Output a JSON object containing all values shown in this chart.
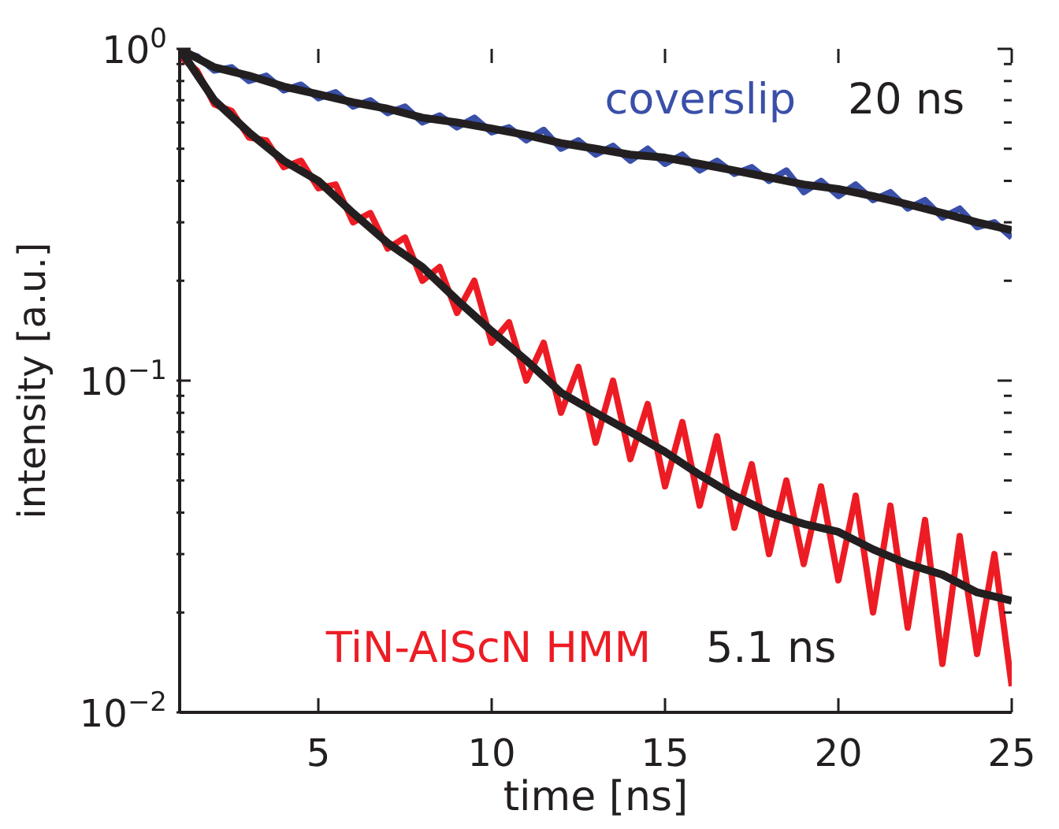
{
  "chart_data": {
    "type": "line",
    "xlabel": "time [ns]",
    "ylabel": "intensity [a.u.]",
    "log": "y",
    "xlim": [
      1,
      25
    ],
    "xticks": [
      5,
      10,
      15,
      20,
      25
    ],
    "ylim": [
      0.01,
      1
    ],
    "yticks": [
      {
        "value": 0.01,
        "label": "10$^{−2}$"
      },
      {
        "value": 0.02,
        "label": null
      },
      {
        "value": 0.03,
        "label": null
      },
      {
        "value": 0.04,
        "label": null
      },
      {
        "value": 0.05,
        "label": null
      },
      {
        "value": 0.06,
        "label": null
      },
      {
        "value": 0.07,
        "label": null
      },
      {
        "value": 0.08,
        "label": null
      },
      {
        "value": 0.09,
        "label": null
      },
      {
        "value": 0.1,
        "label": "10$^{−1}$"
      },
      {
        "value": 0.2,
        "label": null
      },
      {
        "value": 0.3,
        "label": null
      },
      {
        "value": 0.4,
        "label": null
      },
      {
        "value": 0.5,
        "label": null
      },
      {
        "value": 0.6,
        "label": null
      },
      {
        "value": 0.7,
        "label": null
      },
      {
        "value": 0.8,
        "label": null
      },
      {
        "value": 0.9,
        "label": null
      },
      {
        "value": 1,
        "label": "10$^{0}$"
      }
    ],
    "annotations": [
      "20 ns",
      "5.1 ns"
    ],
    "series": [
      {
        "name": "coverslip",
        "color": "#3a4fa8",
        "x": [
          1,
          1.5,
          2,
          2.5,
          3,
          3.5,
          4,
          4.5,
          5,
          5.5,
          6,
          6.5,
          7,
          7.5,
          8,
          8.5,
          9,
          9.5,
          10,
          10.5,
          11,
          11.5,
          12,
          12.5,
          13,
          13.5,
          14,
          14.5,
          15,
          15.5,
          16,
          16.5,
          17,
          17.5,
          18,
          18.5,
          19,
          19.5,
          20,
          20.5,
          21,
          21.5,
          22,
          22.5,
          23,
          23.5,
          24,
          24.5,
          25
        ],
        "values": [
          0.98,
          0.95,
          0.86,
          0.88,
          0.8,
          0.83,
          0.75,
          0.78,
          0.71,
          0.74,
          0.67,
          0.7,
          0.64,
          0.67,
          0.6,
          0.63,
          0.58,
          0.62,
          0.56,
          0.58,
          0.53,
          0.57,
          0.5,
          0.53,
          0.48,
          0.51,
          0.46,
          0.5,
          0.45,
          0.48,
          0.43,
          0.46,
          0.42,
          0.44,
          0.4,
          0.43,
          0.37,
          0.4,
          0.36,
          0.39,
          0.35,
          0.37,
          0.33,
          0.35,
          0.31,
          0.33,
          0.29,
          0.3,
          0.27
        ]
      },
      {
        "color": "#231f20",
        "x": [
          1,
          2,
          3,
          4,
          5,
          6,
          7,
          8,
          9,
          10,
          11,
          12,
          13,
          14,
          15,
          16,
          17,
          18,
          19,
          20,
          21,
          22,
          23,
          24,
          25
        ],
        "values": [
          1,
          0.88,
          0.83,
          0.77,
          0.73,
          0.69,
          0.66,
          0.62,
          0.6,
          0.575,
          0.55,
          0.52,
          0.5,
          0.48,
          0.47,
          0.45,
          0.43,
          0.41,
          0.39,
          0.378,
          0.36,
          0.34,
          0.32,
          0.3,
          0.284
        ]
      },
      {
        "name": "TiN-AlScN HMM",
        "color": "#ed1c24",
        "x": [
          1,
          1.5,
          2,
          2.5,
          3,
          3.5,
          4,
          4.5,
          5,
          5.5,
          6,
          6.5,
          7,
          7.5,
          8,
          8.5,
          9,
          9.5,
          10,
          10.5,
          11,
          11.5,
          12,
          12.5,
          13,
          13.5,
          14,
          14.5,
          15,
          15.5,
          16,
          16.5,
          17,
          17.5,
          18,
          18.5,
          19,
          19.5,
          20,
          20.5,
          21,
          21.5,
          22,
          22.5,
          23,
          23.5,
          24,
          24.5,
          25
        ],
        "values": [
          0.95,
          0.86,
          0.68,
          0.65,
          0.54,
          0.53,
          0.44,
          0.46,
          0.38,
          0.39,
          0.3,
          0.32,
          0.25,
          0.27,
          0.2,
          0.22,
          0.16,
          0.2,
          0.13,
          0.15,
          0.1,
          0.13,
          0.08,
          0.11,
          0.065,
          0.1,
          0.058,
          0.085,
          0.048,
          0.075,
          0.042,
          0.068,
          0.036,
          0.056,
          0.03,
          0.05,
          0.028,
          0.048,
          0.025,
          0.045,
          0.02,
          0.042,
          0.018,
          0.038,
          0.014,
          0.034,
          0.015,
          0.03,
          0.012
        ]
      },
      {
        "color": "#231f20",
        "x": [
          1,
          2,
          3,
          4,
          5,
          6,
          7,
          8,
          9,
          10,
          11,
          12,
          13,
          14,
          15,
          16,
          17,
          18,
          19,
          20,
          21,
          22,
          23,
          24,
          25
        ],
        "values": [
          1,
          0.7,
          0.56,
          0.46,
          0.4,
          0.32,
          0.26,
          0.22,
          0.175,
          0.141,
          0.115,
          0.092,
          0.08,
          0.07,
          0.061,
          0.052,
          0.045,
          0.04,
          0.037,
          0.035,
          0.031,
          0.028,
          0.026,
          0.023,
          0.0217
        ]
      }
    ]
  }
}
